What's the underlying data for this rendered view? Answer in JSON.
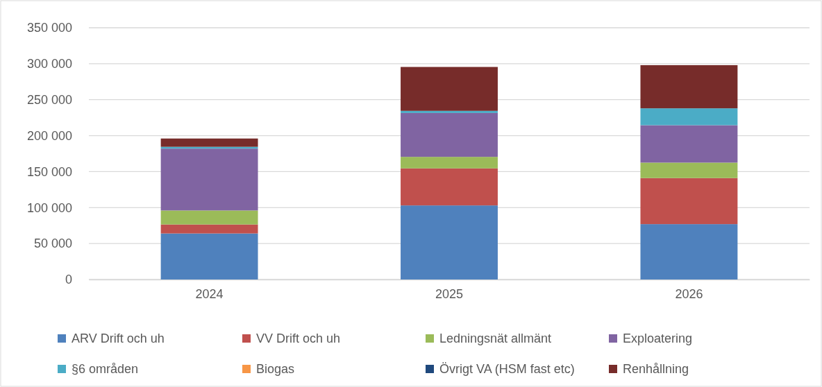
{
  "chart_data": {
    "type": "bar",
    "stacked": true,
    "categories": [
      "2024",
      "2025",
      "2026"
    ],
    "series": [
      {
        "name": "ARV Drift och uh",
        "color": "#4f81bd",
        "values": [
          64000,
          103000,
          77000
        ]
      },
      {
        "name": "VV Drift och uh",
        "color": "#c0504d",
        "values": [
          12500,
          51500,
          64000
        ]
      },
      {
        "name": "Ledningsnät allmänt",
        "color": "#9bbb59",
        "values": [
          19500,
          16000,
          21500
        ]
      },
      {
        "name": "Exploatering",
        "color": "#8064a2",
        "values": [
          86000,
          61000,
          52000
        ]
      },
      {
        "name": "§6 områden",
        "color": "#4bacc6",
        "values": [
          2500,
          3000,
          23500
        ]
      },
      {
        "name": "Biogas",
        "color": "#f79646",
        "values": [
          0,
          0,
          0
        ]
      },
      {
        "name": "Övrigt VA (HSM fast etc)",
        "color": "#1f497d",
        "values": [
          0,
          0,
          0
        ]
      },
      {
        "name": "Renhållning",
        "color": "#772c2a",
        "values": [
          11500,
          61000,
          60000
        ]
      }
    ],
    "ylim": [
      0,
      350000
    ],
    "yticks": [
      {
        "value": 0,
        "label": "0"
      },
      {
        "value": 50000,
        "label": "50 000"
      },
      {
        "value": 100000,
        "label": "100 000"
      },
      {
        "value": 150000,
        "label": "150 000"
      },
      {
        "value": 200000,
        "label": "200 000"
      },
      {
        "value": 250000,
        "label": "250 000"
      },
      {
        "value": 300000,
        "label": "300 000"
      },
      {
        "value": 350000,
        "label": "350 000"
      }
    ],
    "grid": "y",
    "legend": "bottom"
  }
}
